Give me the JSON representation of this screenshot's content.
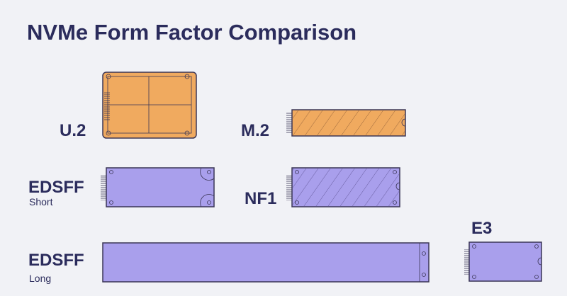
{
  "header": {
    "title": "NVMe Form Factor Comparison"
  },
  "items": [
    {
      "label": "U.2"
    },
    {
      "label": "M.2"
    },
    {
      "label": "EDSFF",
      "sublabel": "Short"
    },
    {
      "label": "NF1"
    },
    {
      "label": "EDSFF",
      "sublabel": "Long"
    },
    {
      "label": "E3"
    }
  ]
}
